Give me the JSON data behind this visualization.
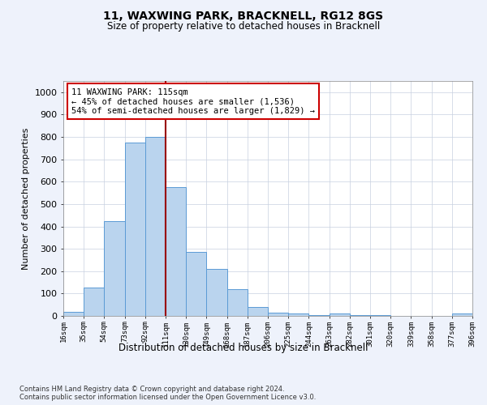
{
  "title": "11, WAXWING PARK, BRACKNELL, RG12 8GS",
  "subtitle": "Size of property relative to detached houses in Bracknell",
  "xlabel": "Distribution of detached houses by size in Bracknell",
  "ylabel": "Number of detached properties",
  "bar_labels": [
    "16sqm",
    "35sqm",
    "54sqm",
    "73sqm",
    "92sqm",
    "111sqm",
    "130sqm",
    "149sqm",
    "168sqm",
    "187sqm",
    "206sqm",
    "225sqm",
    "244sqm",
    "263sqm",
    "282sqm",
    "301sqm",
    "320sqm",
    "339sqm",
    "358sqm",
    "377sqm",
    "396sqm"
  ],
  "bar_values": [
    18,
    125,
    425,
    775,
    800,
    575,
    285,
    210,
    120,
    40,
    15,
    10,
    5,
    10,
    5,
    5,
    0,
    0,
    0,
    10
  ],
  "bar_color": "#bad4ee",
  "bar_edge_color": "#5b9bd5",
  "vline_x_bar_index": 5,
  "vline_color": "#990000",
  "annotation_text": "11 WAXWING PARK: 115sqm\n← 45% of detached houses are smaller (1,536)\n54% of semi-detached houses are larger (1,829) →",
  "annotation_box_color": "#ffffff",
  "annotation_box_edge": "#cc0000",
  "ylim": [
    0,
    1050
  ],
  "yticks": [
    0,
    100,
    200,
    300,
    400,
    500,
    600,
    700,
    800,
    900,
    1000
  ],
  "footnote1": "Contains HM Land Registry data © Crown copyright and database right 2024.",
  "footnote2": "Contains public sector information licensed under the Open Government Licence v3.0.",
  "background_color": "#eef2fb",
  "plot_bg_color": "#ffffff",
  "grid_color": "#c8d0e0"
}
